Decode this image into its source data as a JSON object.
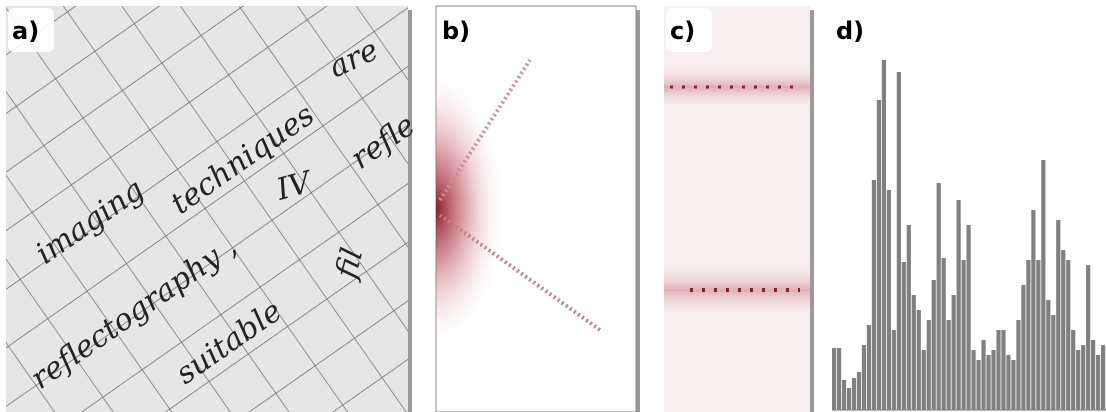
{
  "panels": [
    {
      "label": "a)",
      "words": [
        "imaging",
        "techniques",
        "are",
        "IV",
        "reflectography ,",
        "suitable",
        "refle",
        "fil"
      ]
    },
    {
      "label": "b)"
    },
    {
      "label": "c)"
    },
    {
      "label": "d)",
      "values": [
        62,
        62,
        30,
        22,
        32,
        38,
        65,
        85,
        230,
        310,
        350,
        220,
        80,
        338,
        148,
        185,
        115,
        100,
        60,
        90,
        130,
        227,
        152,
        90,
        115,
        210,
        150,
        185,
        60,
        50,
        70,
        55,
        60,
        80,
        80,
        55,
        50,
        90,
        125,
        150,
        200,
        150,
        250,
        110,
        95,
        190,
        160,
        150,
        80,
        60,
        65,
        145,
        70,
        55,
        65
      ]
    }
  ]
}
